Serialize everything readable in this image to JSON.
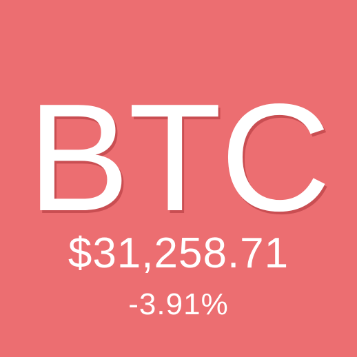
{
  "ticker": {
    "symbol": "BTC",
    "price": "$31,258.71",
    "change_percent": "-3.91%"
  },
  "colors": {
    "background": "#ec6e71",
    "text": "#ffffff"
  }
}
